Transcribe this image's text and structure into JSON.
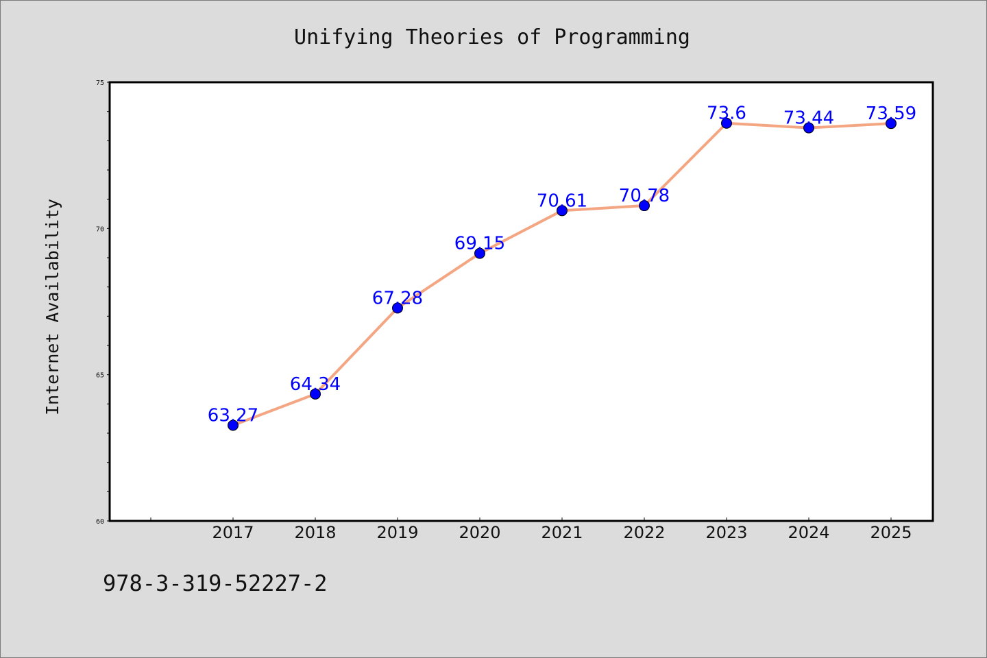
{
  "footer": {
    "isbn": "978-3-319-52227-2"
  },
  "colors": {
    "background": "#dcdcdc",
    "plot_background": "#ffffff",
    "line": "#f4a582",
    "marker": "#0000ff",
    "data_label": "#0000ff"
  },
  "chart_data": {
    "type": "line",
    "title": "Unifying Theories of Programming",
    "xlabel": "",
    "ylabel": "Internet Availability",
    "categories": [
      "2017",
      "2018",
      "2019",
      "2020",
      "2021",
      "2022",
      "2023",
      "2024",
      "2025"
    ],
    "series": [
      {
        "values": [
          63.27,
          64.34,
          67.28,
          69.15,
          70.61,
          70.78,
          73.6,
          73.44,
          73.59
        ],
        "labels": [
          "63.27",
          "64.34",
          "67.28",
          "69.15",
          "70.61",
          "70.78",
          "73.6",
          "73.44",
          "73.59"
        ],
        "color": "#f4a582",
        "marker_color": "#0000ff"
      }
    ],
    "ylim": [
      60,
      75
    ],
    "yticks": [
      "60",
      "65",
      "70",
      "75"
    ],
    "y_minor_step": 1,
    "grid": false,
    "legend": "none"
  }
}
